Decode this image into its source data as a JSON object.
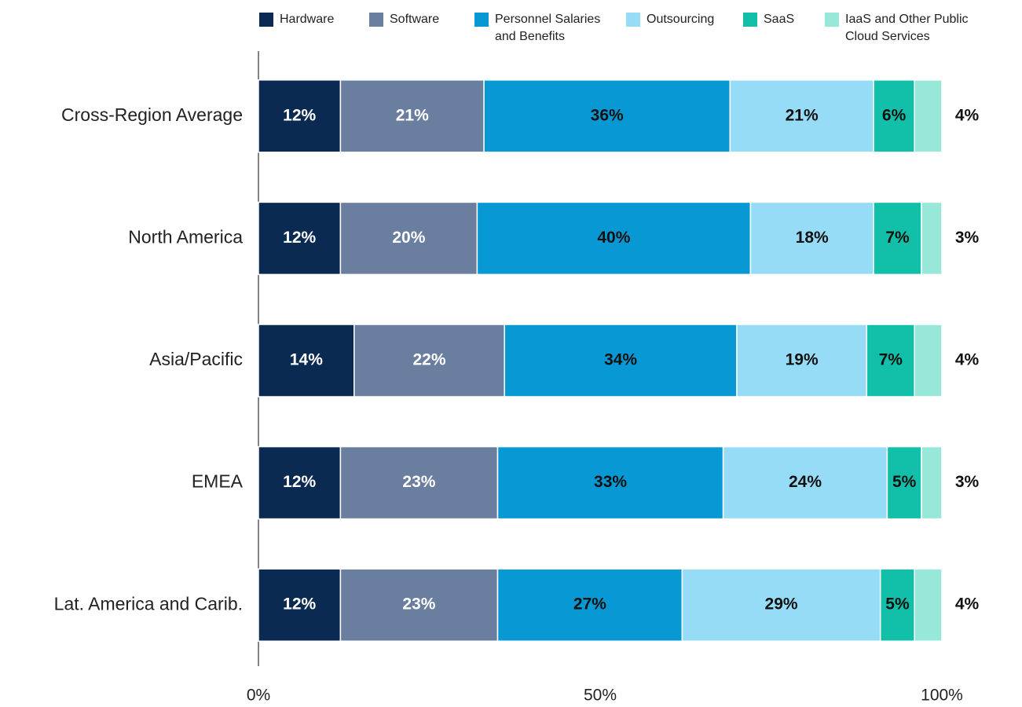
{
  "chart_data": {
    "type": "stacked-barh",
    "categories": [
      "Cross-Region Average",
      "North America",
      "Asia/Pacific",
      "EMEA",
      "Lat. America and Carib."
    ],
    "series": [
      {
        "name": "Hardware",
        "color": "#0b2a52",
        "values": [
          12,
          12,
          14,
          12,
          12
        ],
        "value_labels": [
          "12%",
          "12%",
          "14%",
          "12%",
          "12%"
        ]
      },
      {
        "name": "Software",
        "color": "#6a7fa0",
        "values": [
          21,
          20,
          22,
          23,
          23
        ],
        "value_labels": [
          "21%",
          "20%",
          "22%",
          "23%",
          "23%"
        ]
      },
      {
        "name": "Personnel Salaries and Benefits",
        "color": "#0899d4",
        "values": [
          36,
          40,
          34,
          33,
          27
        ],
        "value_labels": [
          "36%",
          "40%",
          "34%",
          "33%",
          "27%"
        ]
      },
      {
        "name": "Outsourcing",
        "color": "#96dcf7",
        "values": [
          21,
          18,
          19,
          24,
          29
        ],
        "value_labels": [
          "21%",
          "18%",
          "19%",
          "24%",
          "29%"
        ]
      },
      {
        "name": "SaaS",
        "color": "#12bfa8",
        "values": [
          6,
          7,
          7,
          5,
          5
        ],
        "value_labels": [
          "6%",
          "7%",
          "7%",
          "5%",
          "5%"
        ]
      },
      {
        "name": "IaaS and Other Public Cloud Services",
        "color": "#98e8da",
        "values": [
          4,
          3,
          4,
          3,
          4
        ],
        "value_labels": [
          "4%",
          "3%",
          "4%",
          "3%",
          "4%"
        ]
      }
    ],
    "xlim": [
      0,
      100
    ],
    "xticks": [
      {
        "value": 0,
        "label": "0%"
      },
      {
        "value": 50,
        "label": "50%"
      },
      {
        "value": 100,
        "label": "100%"
      }
    ],
    "legend": "top"
  }
}
